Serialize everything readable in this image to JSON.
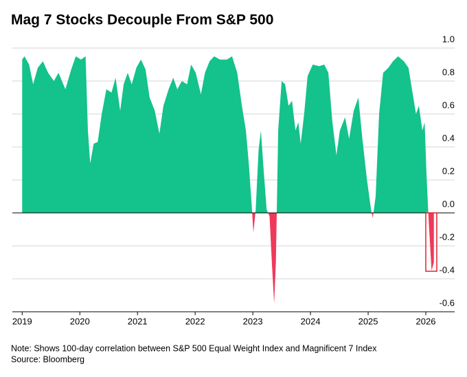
{
  "chart_data": {
    "type": "area",
    "title": "Mag 7 Stocks Decouple From S&P 500",
    "note": "Note: Shows 100-day correlation between S&P 500 Equal Weight Index and Magnificent 7 Index",
    "source": "Source: Bloomberg",
    "color": "#14c28b",
    "negative_color": "#f0395a",
    "x": [
      2019.0,
      2019.04,
      2019.12,
      2019.19,
      2019.27,
      2019.36,
      2019.45,
      2019.55,
      2019.63,
      2019.75,
      2019.85,
      2019.93,
      2020.02,
      2020.1,
      2020.14,
      2020.18,
      2020.24,
      2020.31,
      2020.38,
      2020.46,
      2020.55,
      2020.62,
      2020.7,
      2020.76,
      2020.83,
      2020.9,
      2020.98,
      2021.06,
      2021.14,
      2021.21,
      2021.3,
      2021.38,
      2021.45,
      2021.54,
      2021.62,
      2021.69,
      2021.77,
      2021.86,
      2021.93,
      2022.01,
      2022.1,
      2022.17,
      2022.25,
      2022.33,
      2022.43,
      2022.55,
      2022.64,
      2022.73,
      2022.81,
      2022.88,
      2022.93,
      2022.98,
      2023.01,
      2023.05,
      2023.1,
      2023.14,
      2023.19,
      2023.24,
      2023.29,
      2023.33,
      2023.37,
      2023.4,
      2023.44,
      2023.5,
      2023.56,
      2023.62,
      2023.68,
      2023.74,
      2023.79,
      2023.83,
      2023.89,
      2023.95,
      2024.04,
      2024.15,
      2024.24,
      2024.31,
      2024.38,
      2024.45,
      2024.51,
      2024.6,
      2024.67,
      2024.75,
      2024.83,
      2024.9,
      2024.98,
      2025.05,
      2025.08,
      2025.13,
      2025.19,
      2025.26,
      2025.35,
      2025.43,
      2025.52,
      2025.62,
      2025.7,
      2025.76,
      2025.83,
      2025.88,
      2025.94,
      2025.98,
      2026.01,
      2026.05,
      2026.1,
      2026.14
    ],
    "values": [
      0.93,
      0.95,
      0.9,
      0.78,
      0.88,
      0.92,
      0.85,
      0.8,
      0.85,
      0.75,
      0.87,
      0.95,
      0.93,
      0.95,
      0.5,
      0.3,
      0.42,
      0.43,
      0.6,
      0.75,
      0.73,
      0.82,
      0.62,
      0.78,
      0.85,
      0.78,
      0.88,
      0.93,
      0.87,
      0.7,
      0.62,
      0.48,
      0.65,
      0.75,
      0.82,
      0.75,
      0.8,
      0.78,
      0.9,
      0.85,
      0.72,
      0.85,
      0.92,
      0.95,
      0.93,
      0.93,
      0.95,
      0.85,
      0.65,
      0.5,
      0.3,
      0.05,
      -0.12,
      0.02,
      0.38,
      0.5,
      0.25,
      0.02,
      -0.02,
      -0.3,
      -0.55,
      -0.3,
      0.5,
      0.8,
      0.78,
      0.65,
      0.68,
      0.5,
      0.55,
      0.42,
      0.6,
      0.83,
      0.9,
      0.89,
      0.9,
      0.85,
      0.55,
      0.35,
      0.5,
      0.58,
      0.45,
      0.62,
      0.7,
      0.45,
      0.2,
      0.02,
      -0.03,
      0.1,
      0.6,
      0.85,
      0.88,
      0.92,
      0.95,
      0.92,
      0.88,
      0.75,
      0.6,
      0.65,
      0.5,
      0.55,
      0.25,
      -0.05,
      -0.35,
      -0.3
    ],
    "xlim": [
      2018.83,
      2026.5
    ],
    "xticks": [
      2019,
      2020,
      2021,
      2022,
      2023,
      2024,
      2025,
      2026
    ],
    "ylim": [
      -0.6,
      1
    ],
    "yticks": [
      {
        "value": 1,
        "label": "1.0"
      },
      0.8,
      0.6,
      0.4,
      0.2,
      {
        "value": 0,
        "label": "0.0"
      },
      -0.2,
      -0.4,
      -0.6
    ],
    "grid": true
  }
}
